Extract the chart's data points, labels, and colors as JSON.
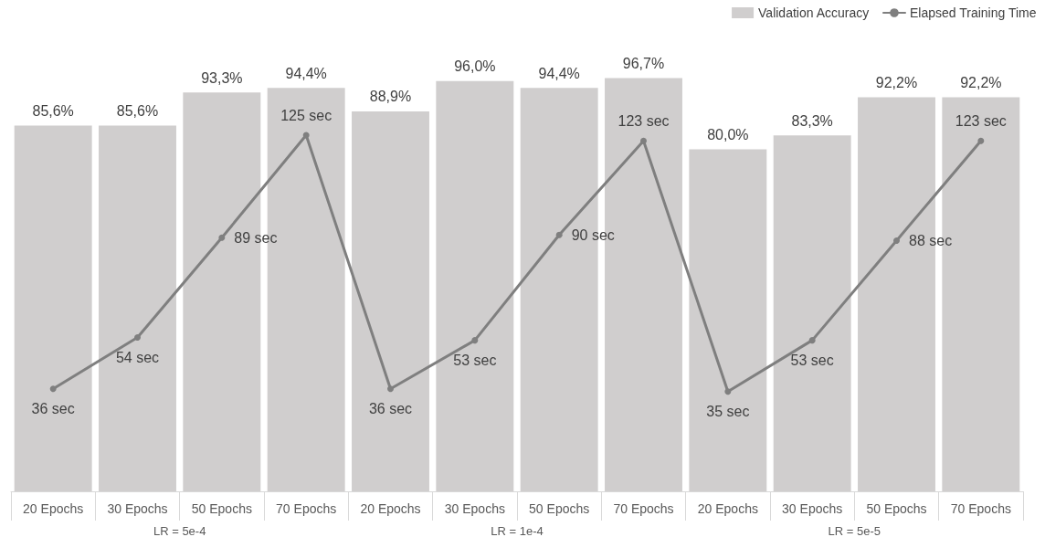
{
  "chart_data": {
    "type": "bar",
    "categories": [
      "20 Epochs",
      "30 Epochs",
      "50 Epochs",
      "70 Epochs",
      "20 Epochs",
      "30 Epochs",
      "50 Epochs",
      "70 Epochs",
      "20 Epochs",
      "30 Epochs",
      "50 Epochs",
      "70 Epochs"
    ],
    "series": [
      {
        "name": "Validation Accuracy",
        "color": "#d0cece",
        "values": [
          85.6,
          85.6,
          93.3,
          94.4,
          88.9,
          96.0,
          94.4,
          96.7,
          80.0,
          83.3,
          92.2,
          92.2
        ],
        "value_labels": [
          "85,6%",
          "85,6%",
          "93,3%",
          "94,4%",
          "88,9%",
          "96,0%",
          "94,4%",
          "96,7%",
          "80,0%",
          "83,3%",
          "92,2%",
          "92,2%"
        ]
      },
      {
        "name": "Elapsed Training Time",
        "type": "line",
        "axis": "y2",
        "color": "#7f7f7f",
        "values": [
          36,
          54,
          89,
          125,
          36,
          53,
          90,
          123,
          35,
          53,
          88,
          123
        ],
        "value_labels": [
          "36 sec",
          "54 sec",
          "89 sec",
          "125 sec",
          "36 sec",
          "53 sec",
          "90 sec",
          "123 sec",
          "35 sec",
          "53 sec",
          "88 sec",
          "123 sec"
        ]
      }
    ],
    "annotations": [
      "LR = 5e-4",
      "LR = 1e-4",
      "LR = 5e-5"
    ],
    "tick_labels": "x",
    "grid": false,
    "legend": "top right",
    "marker": "circle",
    "line_style": "solid"
  }
}
